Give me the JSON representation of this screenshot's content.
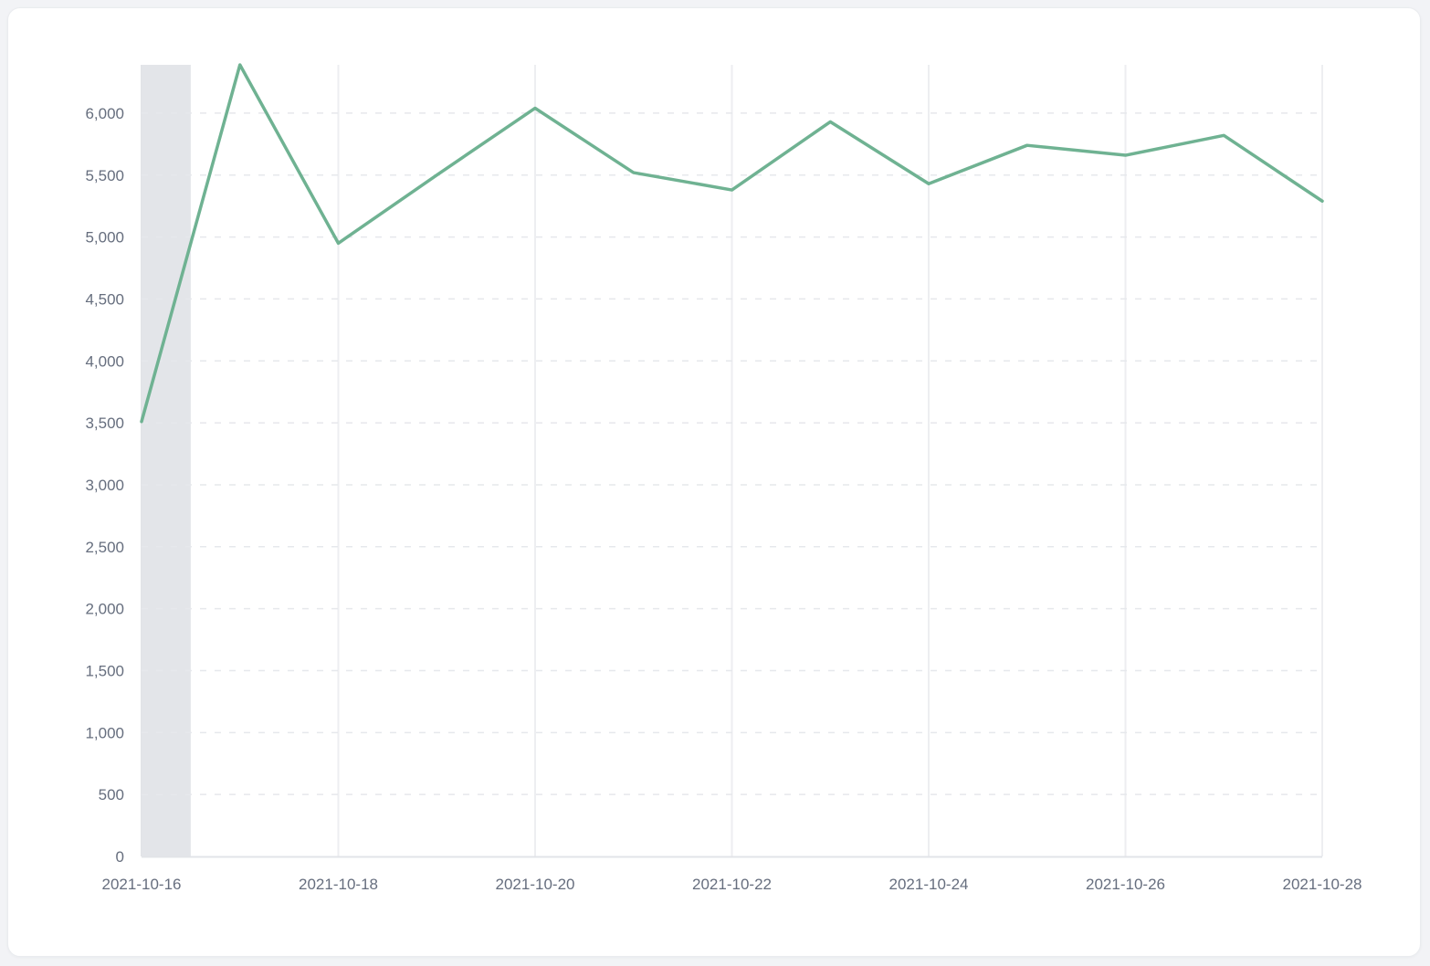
{
  "chart_data": {
    "type": "line",
    "x": [
      "2021-10-16",
      "2021-10-17",
      "2021-10-18",
      "2021-10-19",
      "2021-10-20",
      "2021-10-21",
      "2021-10-22",
      "2021-10-23",
      "2021-10-24",
      "2021-10-25",
      "2021-10-26",
      "2021-10-27",
      "2021-10-28"
    ],
    "values": [
      3510,
      6390,
      4950,
      5500,
      6040,
      5520,
      5380,
      5930,
      5430,
      5740,
      5660,
      5820,
      5290
    ],
    "title": "",
    "xlabel": "",
    "ylabel": "",
    "ylim": [
      0,
      6390
    ],
    "y_ticks": [
      0,
      500,
      1000,
      1500,
      2000,
      2500,
      3000,
      3500,
      4000,
      4500,
      5000,
      5500,
      6000
    ],
    "y_tick_labels": [
      "0",
      "500",
      "1,000",
      "1,500",
      "2,000",
      "2,500",
      "3,000",
      "3,500",
      "4,000",
      "4,500",
      "5,000",
      "5,500",
      "6,000"
    ],
    "x_tick_labels": [
      "2021-10-16",
      "2021-10-18",
      "2021-10-20",
      "2021-10-22",
      "2021-10-24",
      "2021-10-26",
      "2021-10-28"
    ],
    "x_tick_every": 2,
    "grid": {
      "horizontal": "dashed",
      "vertical": "solid"
    },
    "legend": "none",
    "highlight_band": {
      "from_day": 0,
      "to_day": 0.5
    },
    "colors": {
      "line": "#6fb292",
      "band": "#e3e5e9",
      "grid_dashed": "#e6e8ec",
      "grid_solid": "#edeef1",
      "axis_line": "#e2e4e8",
      "label_text": "#666e7e",
      "card_background": "#ffffff",
      "page_background": "#f2f3f6"
    }
  }
}
